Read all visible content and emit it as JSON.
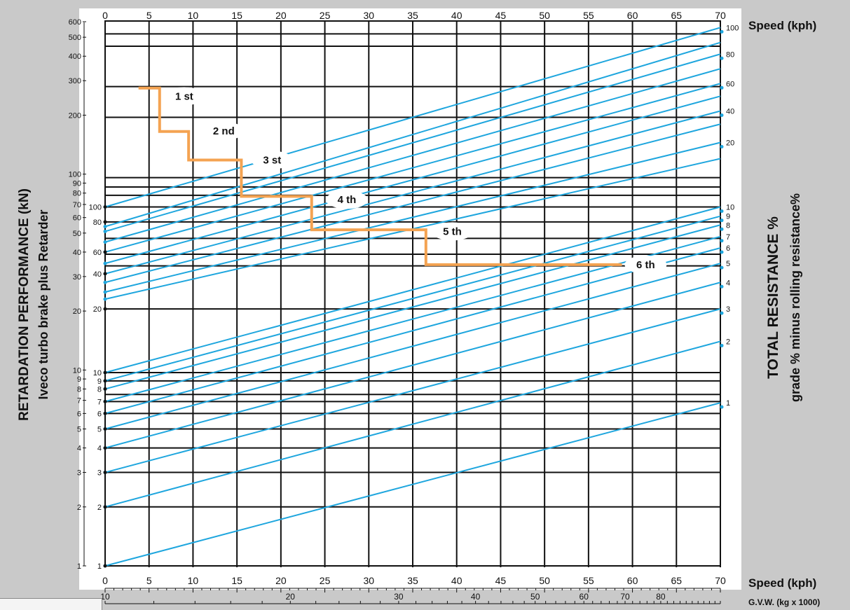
{
  "chart_data": {
    "type": "line",
    "title": "",
    "y_left_title": "RETARDATION PERFORMANCE (kN)",
    "y_left_subtitle": "Iveco turbo brake plus Retarder",
    "y_right_title": "TOTAL RESISTANCE %",
    "y_right_subtitle": "grade % minus rolling resistance%",
    "x_top_label": "Speed (kph)",
    "x_bottom_label": "Speed (kph)",
    "gvw_label": "G.V.W. (kg x 1000)",
    "y_scale": "log",
    "ylim": [
      1,
      600
    ],
    "xlim": [
      0,
      70
    ],
    "grid": true,
    "speed_ticks": [
      "0",
      "5",
      "10",
      "15",
      "20",
      "25",
      "30",
      "35",
      "40",
      "45",
      "50",
      "55",
      "60",
      "65",
      "70"
    ],
    "speed_values": [
      0,
      5,
      10,
      15,
      20,
      25,
      30,
      35,
      40,
      45,
      50,
      55,
      60,
      65,
      70
    ],
    "left_ticks": [
      {
        "label": "600",
        "value": 600
      },
      {
        "label": "500",
        "value": 500
      },
      {
        "label": "400",
        "value": 400
      },
      {
        "label": "300",
        "value": 300
      },
      {
        "label": "200",
        "value": 200
      },
      {
        "label": "100",
        "value": 100
      },
      {
        "label": "90",
        "value": 90
      },
      {
        "label": "80",
        "value": 80
      },
      {
        "label": "70",
        "value": 70
      },
      {
        "label": "60",
        "value": 60
      },
      {
        "label": "50",
        "value": 50
      },
      {
        "label": "40",
        "value": 40
      },
      {
        "label": "30",
        "value": 30
      },
      {
        "label": "20",
        "value": 20
      },
      {
        "label": "10",
        "value": 10
      },
      {
        "label": "9",
        "value": 9
      },
      {
        "label": "8",
        "value": 8
      },
      {
        "label": "7",
        "value": 7
      },
      {
        "label": "6",
        "value": 6
      },
      {
        "label": "5",
        "value": 5
      },
      {
        "label": "4",
        "value": 4
      },
      {
        "label": "3",
        "value": 3
      },
      {
        "label": "2",
        "value": 2
      },
      {
        "label": "1",
        "value": 1
      }
    ],
    "horizontal_grid_kN": [
      520,
      450,
      280,
      195,
      96,
      86,
      78,
      68,
      57,
      47,
      39,
      34,
      20.5,
      9.7,
      8.8,
      7.5,
      6.9,
      6.0,
      5.0,
      4.0,
      3.0,
      2.0
    ],
    "inner_labels": [
      {
        "label": "100",
        "value": 68
      },
      {
        "label": "80",
        "value": 57
      },
      {
        "label": "60",
        "value": 40
      },
      {
        "label": "40",
        "value": 31
      },
      {
        "label": "20",
        "value": 20.5
      },
      {
        "label": "10",
        "value": 9.7
      },
      {
        "label": "9",
        "value": 8.8
      },
      {
        "label": "8",
        "value": 8.0
      },
      {
        "label": "7",
        "value": 6.9
      },
      {
        "label": "6",
        "value": 6.0
      },
      {
        "label": "5",
        "value": 5.0
      },
      {
        "label": "4",
        "value": 4.0
      },
      {
        "label": "3",
        "value": 3.0
      },
      {
        "label": "2",
        "value": 2.0
      },
      {
        "label": "1",
        "value": 1.0
      }
    ],
    "resistance_lines": [
      {
        "label": "100",
        "start": 68,
        "end": 560
      },
      {
        "label": "",
        "start": 54,
        "end": 470
      },
      {
        "label": "80",
        "start": 51,
        "end": 410
      },
      {
        "label": "",
        "start": 45,
        "end": 345
      },
      {
        "label": "60",
        "start": 40,
        "end": 290
      },
      {
        "label": "",
        "start": 35,
        "end": 250
      },
      {
        "label": "40",
        "start": 31,
        "end": 210
      },
      {
        "label": "",
        "start": 28,
        "end": 180
      },
      {
        "label": "20",
        "start": 25,
        "end": 145
      },
      {
        "label": "",
        "start": 23,
        "end": 120
      },
      {
        "label": "10",
        "start": 9.7,
        "end": 68
      },
      {
        "label": "9",
        "start": 8.8,
        "end": 61
      },
      {
        "label": "8",
        "start": 8.0,
        "end": 55
      },
      {
        "label": "7",
        "start": 6.9,
        "end": 48
      },
      {
        "label": "6",
        "start": 6.0,
        "end": 42
      },
      {
        "label": "5",
        "start": 5.0,
        "end": 35
      },
      {
        "label": "4",
        "start": 4.0,
        "end": 28
      },
      {
        "label": "3",
        "start": 3.0,
        "end": 20.5
      },
      {
        "label": "2",
        "start": 2.0,
        "end": 14
      },
      {
        "label": "1",
        "start": 1.0,
        "end": 6.8
      }
    ],
    "gear_curve": {
      "color": "#f4a352",
      "points": [
        [
          3.8,
          275
        ],
        [
          6.2,
          275
        ],
        [
          6.2,
          165
        ],
        [
          9.5,
          165
        ],
        [
          9.5,
          118
        ],
        [
          15.5,
          118
        ],
        [
          15.5,
          77
        ],
        [
          23.5,
          77
        ],
        [
          23.5,
          52
        ],
        [
          36.5,
          52
        ],
        [
          36.5,
          34.5
        ],
        [
          58.8,
          34.5
        ]
      ]
    },
    "gear_labels": [
      {
        "label": "1 st",
        "x": 9.0,
        "kN": 250
      },
      {
        "label": "2 nd",
        "x": 13.5,
        "kN": 166
      },
      {
        "label": "3 st",
        "x": 19.0,
        "kN": 118
      },
      {
        "label": "4 th",
        "x": 27.5,
        "kN": 74
      },
      {
        "label": "5 th",
        "x": 39.5,
        "kN": 51
      },
      {
        "label": "6 th",
        "x": 61.5,
        "kN": 34.5
      }
    ],
    "gvw_ticks": [
      "10",
      "20",
      "30",
      "40",
      "50",
      "60",
      "70",
      "80"
    ],
    "gvw_values": [
      10,
      20,
      30,
      40,
      50,
      60,
      70,
      80
    ],
    "line_color": "#1ea6de"
  }
}
